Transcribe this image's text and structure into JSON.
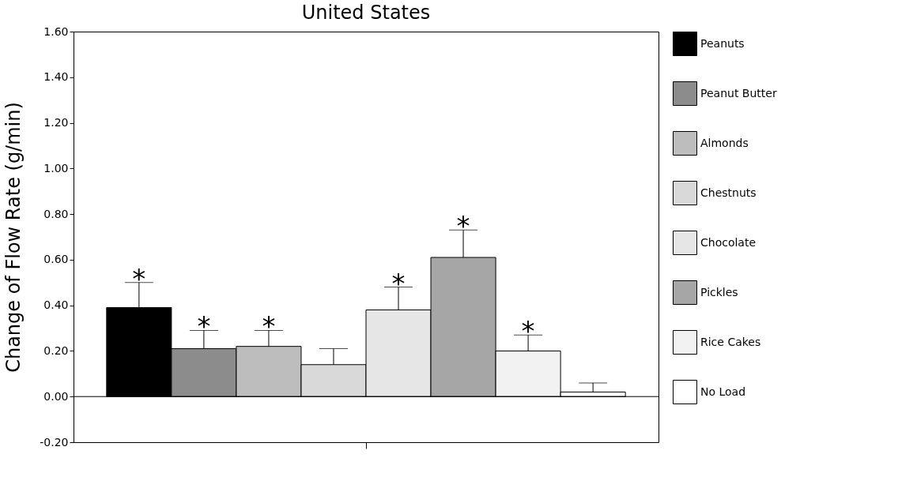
{
  "chart_data": {
    "type": "bar",
    "title": "United States",
    "ylabel": "Change of Flow Rate (g/min)",
    "categories": [
      null
    ],
    "series": [
      {
        "name": "Peanuts",
        "color": "#000000",
        "values": [
          0.39
        ],
        "errors": [
          [
            0.39,
            0.5
          ]
        ]
      },
      {
        "name": "Peanut Butter",
        "color": "#8c8c8c",
        "values": [
          0.21
        ],
        "errors": [
          [
            0.21,
            0.29
          ]
        ]
      },
      {
        "name": "Almonds",
        "color": "#bdbdbd",
        "values": [
          0.22
        ],
        "errors": [
          [
            0.22,
            0.29
          ]
        ]
      },
      {
        "name": "Chestnuts",
        "color": "#d9d9d9",
        "values": [
          0.14
        ],
        "errors": [
          [
            0.14,
            0.21
          ]
        ]
      },
      {
        "name": "Chocolate",
        "color": "#e6e6e6",
        "values": [
          0.38
        ],
        "errors": [
          [
            0.38,
            0.48
          ]
        ]
      },
      {
        "name": "Pickles",
        "color": "#a6a6a6",
        "values": [
          0.61
        ],
        "errors": [
          [
            0.61,
            0.73
          ]
        ]
      },
      {
        "name": "Rice Cakes",
        "color": "#f2f2f2",
        "values": [
          0.2
        ],
        "errors": [
          [
            0.2,
            0.27
          ]
        ]
      },
      {
        "name": "No Load",
        "color": "#ffffff",
        "values": [
          0.02
        ],
        "errors": [
          [
            0.02,
            0.06
          ]
        ]
      }
    ],
    "ylim": [
      -0.2,
      1.6
    ],
    "yticks": [
      {
        "value": -0.2,
        "label": "-0.20"
      },
      {
        "value": 0,
        "label": "0.00"
      },
      {
        "value": 0.2,
        "label": "0.20"
      },
      {
        "value": 0.4,
        "label": "0.40"
      },
      {
        "value": 0.6,
        "label": "0.60"
      },
      {
        "value": 0.8,
        "label": "0.80"
      },
      {
        "value": 1.0,
        "label": "1.00"
      },
      {
        "value": 1.2,
        "label": "1.20"
      },
      {
        "value": 1.4,
        "label": "1.40"
      },
      {
        "value": 1.6,
        "label": "1.60"
      }
    ],
    "tick_labels": "y",
    "grid": false,
    "legend": "right",
    "ref_lines": [
      {
        "axis": "y",
        "value": 0
      }
    ],
    "annotations": [
      {
        "text": "*",
        "y": 0.5
      },
      {
        "text": "*",
        "y": 0.29
      },
      {
        "text": "*",
        "y": 0.29
      },
      {
        "text": "*",
        "y": 0.48
      },
      {
        "text": "*",
        "y": 0.73
      },
      {
        "text": "*",
        "y": 0.27
      }
    ]
  }
}
